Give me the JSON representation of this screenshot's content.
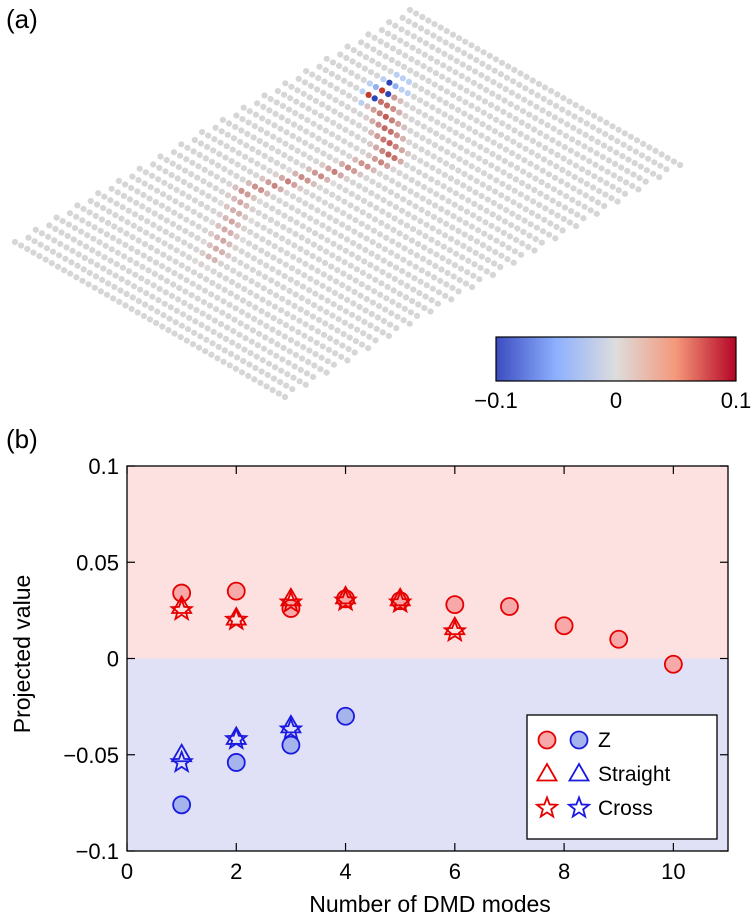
{
  "panel_a": {
    "label": "(a)",
    "colorbar": {
      "min_label": "−0.1",
      "mid_label": "0",
      "max_label": "0.1",
      "colors": [
        "#3b4cc0",
        "#8db0fe",
        "#dddddd",
        "#f4987a",
        "#b40426"
      ]
    },
    "lattice_color": "#d6d6d6"
  },
  "chart_data": {
    "type": "scatter",
    "label": "(b)",
    "xlabel": "Number of DMD modes",
    "ylabel": "Projected value",
    "xlim": [
      0,
      11
    ],
    "ylim": [
      -0.1,
      0.1
    ],
    "xticks": [
      0,
      2,
      4,
      6,
      8,
      10
    ],
    "xtick_labels": [
      "0",
      "2",
      "4",
      "6",
      "8",
      "10"
    ],
    "yticks": [
      -0.1,
      -0.05,
      0,
      0.05,
      0.1
    ],
    "ytick_labels": [
      "−0.1",
      "−0.05",
      "0",
      "0.05",
      "0.1"
    ],
    "grid": false,
    "background": {
      "positive": "#fde0e0",
      "negative": "#e0e0f7"
    },
    "colors": {
      "positive": "#e60000",
      "positive_fill": "#f7a8a8",
      "negative": "#1a1ae0",
      "negative_fill": "#a6b4ee"
    },
    "legend": {
      "placement": "lower-right",
      "entries": [
        "Z",
        "Straight",
        "Cross"
      ]
    },
    "series": [
      {
        "name": "Z",
        "marker": "circle",
        "sign": "positive",
        "points": [
          [
            1,
            0.034
          ],
          [
            2,
            0.035
          ],
          [
            3,
            0.026
          ],
          [
            4,
            0.031
          ],
          [
            5,
            0.03
          ],
          [
            6,
            0.028
          ],
          [
            7,
            0.027
          ],
          [
            8,
            0.017
          ],
          [
            9,
            0.01
          ],
          [
            10,
            -0.003
          ]
        ]
      },
      {
        "marker": "circle",
        "sign": "negative",
        "points": [
          [
            1,
            -0.076
          ],
          [
            2,
            -0.054
          ],
          [
            3,
            -0.045
          ],
          [
            4,
            -0.03
          ]
        ]
      },
      {
        "name": "Straight",
        "marker": "triangle",
        "sign": "positive",
        "points": [
          [
            1,
            0.027
          ],
          [
            2,
            0.021
          ],
          [
            3,
            0.031
          ],
          [
            4,
            0.032
          ],
          [
            5,
            0.031
          ],
          [
            6,
            0.016
          ]
        ]
      },
      {
        "marker": "triangle",
        "sign": "negative",
        "points": [
          [
            1,
            -0.05
          ],
          [
            2,
            -0.041
          ],
          [
            3,
            -0.035
          ]
        ]
      },
      {
        "name": "Cross",
        "marker": "star",
        "sign": "positive",
        "points": [
          [
            1,
            0.025
          ],
          [
            2,
            0.02
          ],
          [
            3,
            0.029
          ],
          [
            4,
            0.03
          ],
          [
            5,
            0.029
          ],
          [
            6,
            0.014
          ]
        ]
      },
      {
        "marker": "star",
        "sign": "negative",
        "points": [
          [
            1,
            -0.054
          ],
          [
            2,
            -0.042
          ],
          [
            3,
            -0.037
          ]
        ]
      }
    ]
  }
}
